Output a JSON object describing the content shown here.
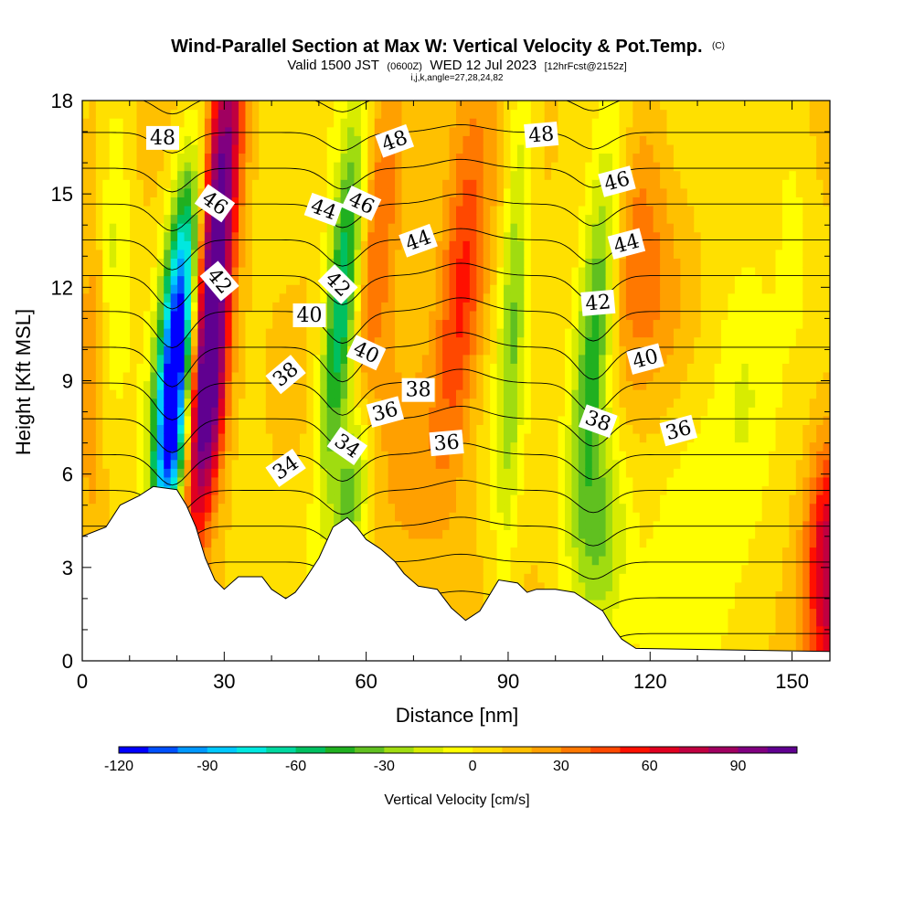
{
  "header": {
    "title_main": "Wind-Parallel Section at Max W: Vertical Velocity & Pot.Temp.",
    "title_mark": "(C)",
    "valid_prefix": "Valid 1500 JST",
    "valid_z": "(0600Z)",
    "valid_date": "WED 12 Jul 2023",
    "fcst": "[12hrFcst@2152z]",
    "indices": "i,j,k,angle=27,28,24,82"
  },
  "chart_data": {
    "type": "heatmap",
    "xlabel": "Distance [nm]",
    "ylabel": "Height [Kft MSL]",
    "xlim": [
      0,
      158
    ],
    "ylim": [
      0,
      18
    ],
    "xticks": [
      0,
      30,
      60,
      90,
      120,
      150
    ],
    "yticks": [
      0,
      3,
      6,
      9,
      12,
      15,
      18
    ],
    "colorbar": {
      "label": "Vertical Velocity [cm/s]",
      "range": [
        -120,
        110
      ],
      "ticks": [
        -120,
        -90,
        -60,
        -30,
        0,
        30,
        60,
        90
      ],
      "colors": [
        "#0000ff",
        "#0050ff",
        "#0098ff",
        "#00c8ff",
        "#00e8e0",
        "#00d8a0",
        "#00c060",
        "#20b020",
        "#60c020",
        "#a0dc10",
        "#d8ec00",
        "#ffff00",
        "#ffe000",
        "#ffc000",
        "#ffa000",
        "#ff7800",
        "#ff4800",
        "#ff1000",
        "#e00020",
        "#c00040",
        "#a00060",
        "#800080",
        "#600090"
      ]
    },
    "terrain_kft": [
      [
        0,
        4.0
      ],
      [
        5,
        4.3
      ],
      [
        8,
        5.0
      ],
      [
        12,
        5.3
      ],
      [
        15,
        5.6
      ],
      [
        20,
        5.5
      ],
      [
        22,
        5.0
      ],
      [
        24,
        4.3
      ],
      [
        26,
        3.3
      ],
      [
        28,
        2.6
      ],
      [
        30,
        2.3
      ],
      [
        33,
        2.7
      ],
      [
        38,
        2.7
      ],
      [
        40,
        2.3
      ],
      [
        43,
        2.0
      ],
      [
        45,
        2.2
      ],
      [
        47,
        2.6
      ],
      [
        50,
        3.3
      ],
      [
        53,
        4.3
      ],
      [
        56,
        4.6
      ],
      [
        58,
        4.3
      ],
      [
        60,
        3.9
      ],
      [
        63,
        3.6
      ],
      [
        66,
        3.2
      ],
      [
        68,
        2.8
      ],
      [
        71,
        2.4
      ],
      [
        75,
        2.3
      ],
      [
        78,
        1.7
      ],
      [
        81,
        1.3
      ],
      [
        84,
        1.6
      ],
      [
        88,
        2.6
      ],
      [
        92,
        2.5
      ],
      [
        94,
        2.2
      ],
      [
        96,
        2.3
      ],
      [
        100,
        2.3
      ],
      [
        104,
        2.2
      ],
      [
        107,
        1.9
      ],
      [
        110,
        1.6
      ],
      [
        112,
        1.1
      ],
      [
        114,
        0.7
      ],
      [
        117,
        0.4
      ],
      [
        158,
        0.3
      ]
    ],
    "w_features": [
      {
        "x": 20,
        "y": 10.5,
        "sx": 2.6,
        "sy": 3.6,
        "tilt": 0.55,
        "w": -125
      },
      {
        "x": 19,
        "y": 6.5,
        "sx": 2.4,
        "sy": 2.2,
        "tilt": 0.5,
        "w": -60
      },
      {
        "x": 7,
        "y": 14,
        "sx": 2.2,
        "sy": 3.5,
        "tilt": 0.1,
        "w": -20
      },
      {
        "x": 2,
        "y": 9,
        "sx": 2.0,
        "sy": 4.0,
        "tilt": 0,
        "w": 20
      },
      {
        "x": 28,
        "y": 13,
        "sx": 2.7,
        "sy": 5.5,
        "tilt": 0.55,
        "w": 110
      },
      {
        "x": 27,
        "y": 8,
        "sx": 2.5,
        "sy": 2.5,
        "tilt": 0.5,
        "w": 55
      },
      {
        "x": 55,
        "y": 11.5,
        "sx": 2.5,
        "sy": 4.0,
        "tilt": 0.55,
        "w": -80
      },
      {
        "x": 57,
        "y": 5.5,
        "sx": 2.5,
        "sy": 2.0,
        "tilt": 0.5,
        "w": -45
      },
      {
        "x": 62,
        "y": 14,
        "sx": 3.5,
        "sy": 4.0,
        "tilt": 0.5,
        "w": 35
      },
      {
        "x": 80,
        "y": 11.5,
        "sx": 3.5,
        "sy": 4.0,
        "tilt": 0.5,
        "w": 48
      },
      {
        "x": 69,
        "y": 6.5,
        "sx": 4.5,
        "sy": 2.5,
        "tilt": 0.2,
        "w": 18
      },
      {
        "x": 91,
        "y": 11,
        "sx": 2.0,
        "sy": 6.0,
        "tilt": 0.25,
        "w": -35
      },
      {
        "x": 108,
        "y": 10,
        "sx": 2.8,
        "sy": 4.5,
        "tilt": 0.5,
        "w": -55
      },
      {
        "x": 110,
        "y": 4,
        "sx": 3.5,
        "sy": 2.5,
        "tilt": 0.3,
        "w": -35
      },
      {
        "x": 117,
        "y": 14,
        "sx": 4.0,
        "sy": 3.5,
        "tilt": 0.4,
        "w": 22
      },
      {
        "x": 122,
        "y": 12,
        "sx": 5.0,
        "sy": 2.5,
        "tilt": 0,
        "w": 15
      },
      {
        "x": 130,
        "y": 5,
        "sx": 8.0,
        "sy": 3.5,
        "tilt": 0,
        "w": -15
      },
      {
        "x": 140,
        "y": 9,
        "sx": 4.0,
        "sy": 3.0,
        "tilt": 0,
        "w": -15
      },
      {
        "x": 150,
        "y": 15,
        "sx": 3.0,
        "sy": 3.0,
        "tilt": 0,
        "w": -12
      },
      {
        "x": 158,
        "y": 3,
        "sx": 3.5,
        "sy": 3.0,
        "tilt": 0,
        "w": 70
      }
    ],
    "theta_levels": [
      34,
      35,
      36,
      37,
      38,
      39,
      40,
      41,
      42,
      43,
      44,
      45,
      46,
      47,
      48,
      49
    ],
    "theta_labels": [
      {
        "text": "48",
        "x": 17,
        "y": 16.8,
        "rot": 0
      },
      {
        "text": "46",
        "x": 28,
        "y": 14.7,
        "rot": 35
      },
      {
        "text": "42",
        "x": 29,
        "y": 12.2,
        "rot": 50
      },
      {
        "text": "44",
        "x": 51,
        "y": 14.5,
        "rot": 20
      },
      {
        "text": "40",
        "x": 48,
        "y": 11.1,
        "rot": 0
      },
      {
        "text": "38",
        "x": 43,
        "y": 9.2,
        "rot": -40
      },
      {
        "text": "36",
        "x": 64,
        "y": 8.0,
        "rot": -15
      },
      {
        "text": "34",
        "x": 43,
        "y": 6.2,
        "rot": -35
      },
      {
        "text": "46",
        "x": 59,
        "y": 14.7,
        "rot": 25
      },
      {
        "text": "42",
        "x": 54,
        "y": 12.1,
        "rot": 45
      },
      {
        "text": "40",
        "x": 60,
        "y": 9.9,
        "rot": 25
      },
      {
        "text": "34",
        "x": 56,
        "y": 6.9,
        "rot": 35
      },
      {
        "text": "48",
        "x": 66,
        "y": 16.7,
        "rot": -20
      },
      {
        "text": "44",
        "x": 71,
        "y": 13.5,
        "rot": -20
      },
      {
        "text": "38",
        "x": 71,
        "y": 8.7,
        "rot": 0
      },
      {
        "text": "36",
        "x": 77,
        "y": 7.0,
        "rot": -5
      },
      {
        "text": "48",
        "x": 97,
        "y": 16.9,
        "rot": -5
      },
      {
        "text": "46",
        "x": 113,
        "y": 15.4,
        "rot": -15
      },
      {
        "text": "44",
        "x": 115,
        "y": 13.4,
        "rot": -15
      },
      {
        "text": "42",
        "x": 109,
        "y": 11.5,
        "rot": -5
      },
      {
        "text": "40",
        "x": 119,
        "y": 9.7,
        "rot": -15
      },
      {
        "text": "38",
        "x": 109,
        "y": 7.7,
        "rot": 20
      },
      {
        "text": "36",
        "x": 126,
        "y": 7.4,
        "rot": -15
      }
    ]
  }
}
